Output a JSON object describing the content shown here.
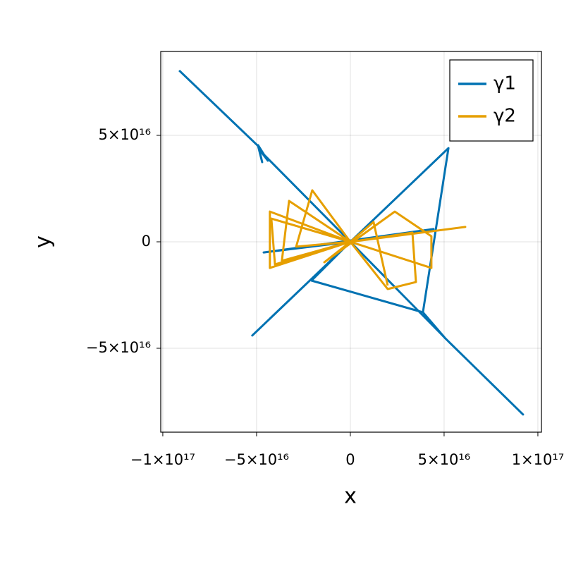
{
  "chart_data": {
    "type": "line",
    "x_label": "x",
    "y_label": "y",
    "xlim": [
      -1.011e+17,
      1.019e+17
    ],
    "ylim": [
      -8.94e+16,
      8.94e+16
    ],
    "xticks": [
      {
        "value": -1e+17,
        "label": "−1×10¹⁷"
      },
      {
        "value": -5e+16,
        "label": "−5×10¹⁶"
      },
      0,
      {
        "value": 5e+16,
        "label": "5×10¹⁶"
      },
      {
        "value": 1e+17,
        "label": "1×10¹⁷"
      }
    ],
    "yticks": [
      {
        "value": -5e+16,
        "label": "−5×10¹⁶"
      },
      0,
      {
        "value": 5e+16,
        "label": "5×10¹⁶"
      }
    ],
    "grid": true,
    "legend": "top-right",
    "series": [
      {
        "name": "γ1",
        "color": "#0072b2",
        "x": [
          -9.13e+16,
          -4.92e+16,
          -4.7e+16,
          -4.92e+16,
          -4.4e+16,
          -4.77e+16,
          0,
          -4.62e+16,
          4.44e+16,
          0,
          5e+16,
          4.7e+16,
          5.07e+16,
          9.21e+16,
          5.07e+16,
          3.87e+16,
          5.23e+16,
          -5.23e+16,
          0,
          -2.07e+16,
          3.87e+16
        ],
        "values": [
          8.05e+16,
          4.5e+16,
          3.74e+16,
          4.54e+16,
          3.81e+16,
          4.24e+16,
          0,
          -5000000000000000.0,
          6000000000000000.0,
          0,
          -4.47e+16,
          -4.2e+16,
          -4.54e+16,
          -8.11e+16,
          -4.54e+16,
          -3.31e+16,
          4.4e+16,
          -4.4e+16,
          0,
          -1.82e+16,
          -3.31e+16
        ]
      },
      {
        "name": "γ2",
        "color": "#e69f00",
        "x": [
          0,
          -4.29e+16,
          -4.29e+16,
          0,
          -4.21e+16,
          -4.02e+16,
          0,
          -3.27e+16,
          -3.65e+16,
          0,
          -2.03e+16,
          -2.89e+16,
          0,
          -1.39e+16,
          2.37e+16,
          4.32e+16,
          4.32e+16,
          0,
          1.99e+16,
          3.5e+16,
          3.31e+16,
          0,
          6.13e+16,
          0,
          1.24e+16,
          1.99e+16
        ],
        "values": [
          0,
          1.42e+16,
          -1.23e+16,
          0,
          1.09e+16,
          -1.06e+16,
          0,
          1.92e+16,
          -8900000000000000.0,
          0,
          2.42e+16,
          -2300000000000000.0,
          0,
          -9600000000000000.0,
          1.42e+16,
          2600000000000000.0,
          -1.23e+16,
          0,
          -2.22e+16,
          -1.89e+16,
          4300000000000000.0,
          0,
          7000000000000000.0,
          0,
          9300000000000000.0,
          -2.05e+16
        ]
      }
    ]
  }
}
